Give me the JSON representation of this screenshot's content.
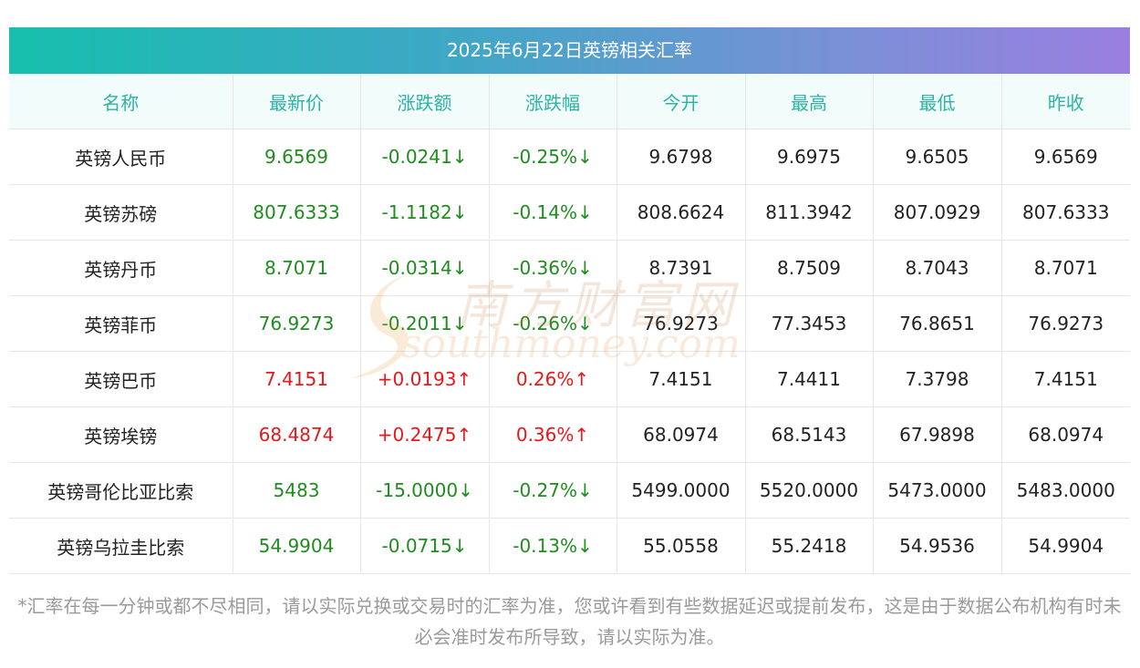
{
  "title": "2025年6月22日英镑相关汇率",
  "headers": [
    "名称",
    "最新价",
    "涨跌额",
    "涨跌幅",
    "今开",
    "最高",
    "最低",
    "昨收"
  ],
  "rows": [
    {
      "name": "英镑人民币",
      "latest": "9.6569",
      "change": "-0.0241↓",
      "change_pct": "-0.25%↓",
      "open": "9.6798",
      "high": "9.6975",
      "low": "9.6505",
      "prev_close": "9.6569",
      "trend": "down"
    },
    {
      "name": "英镑苏磅",
      "latest": "807.6333",
      "change": "-1.1182↓",
      "change_pct": "-0.14%↓",
      "open": "808.6624",
      "high": "811.3942",
      "low": "807.0929",
      "prev_close": "807.6333",
      "trend": "down"
    },
    {
      "name": "英镑丹币",
      "latest": "8.7071",
      "change": "-0.0314↓",
      "change_pct": "-0.36%↓",
      "open": "8.7391",
      "high": "8.7509",
      "low": "8.7043",
      "prev_close": "8.7071",
      "trend": "down"
    },
    {
      "name": "英镑菲币",
      "latest": "76.9273",
      "change": "-0.2011↓",
      "change_pct": "-0.26%↓",
      "open": "76.9273",
      "high": "77.3453",
      "low": "76.8651",
      "prev_close": "76.9273",
      "trend": "down"
    },
    {
      "name": "英镑巴币",
      "latest": "7.4151",
      "change": "+0.0193↑",
      "change_pct": "0.26%↑",
      "open": "7.4151",
      "high": "7.4411",
      "low": "7.3798",
      "prev_close": "7.4151",
      "trend": "up"
    },
    {
      "name": "英镑埃镑",
      "latest": "68.4874",
      "change": "+0.2475↑",
      "change_pct": "0.36%↑",
      "open": "68.0974",
      "high": "68.5143",
      "low": "67.9898",
      "prev_close": "68.0974",
      "trend": "up"
    },
    {
      "name": "英镑哥伦比亚比索",
      "latest": "5483",
      "change": "-15.0000↓",
      "change_pct": "-0.27%↓",
      "open": "5499.0000",
      "high": "5520.0000",
      "low": "5473.0000",
      "prev_close": "5483.0000",
      "trend": "down"
    },
    {
      "name": "英镑乌拉圭比索",
      "latest": "54.9904",
      "change": "-0.0715↓",
      "change_pct": "-0.13%↓",
      "open": "55.0558",
      "high": "55.2418",
      "low": "54.9536",
      "prev_close": "54.9904",
      "trend": "down"
    }
  ],
  "watermark": {
    "cn": "南方财富网",
    "en": "southmoney.com"
  },
  "footnote": "*汇率在每一分钟或都不尽相同，请以实际兑换或交易时的汇率为准，您或许看到有些数据延迟或提前发布，这是由于数据公布机构有时未必会准时发布所导致，请以实际为准。",
  "colors": {
    "up": "#e8171a",
    "down": "#1e8c1e",
    "header_text": "#2bb3a3",
    "title_gradient_start": "#17bfae",
    "title_gradient_end": "#9a7fe0"
  }
}
